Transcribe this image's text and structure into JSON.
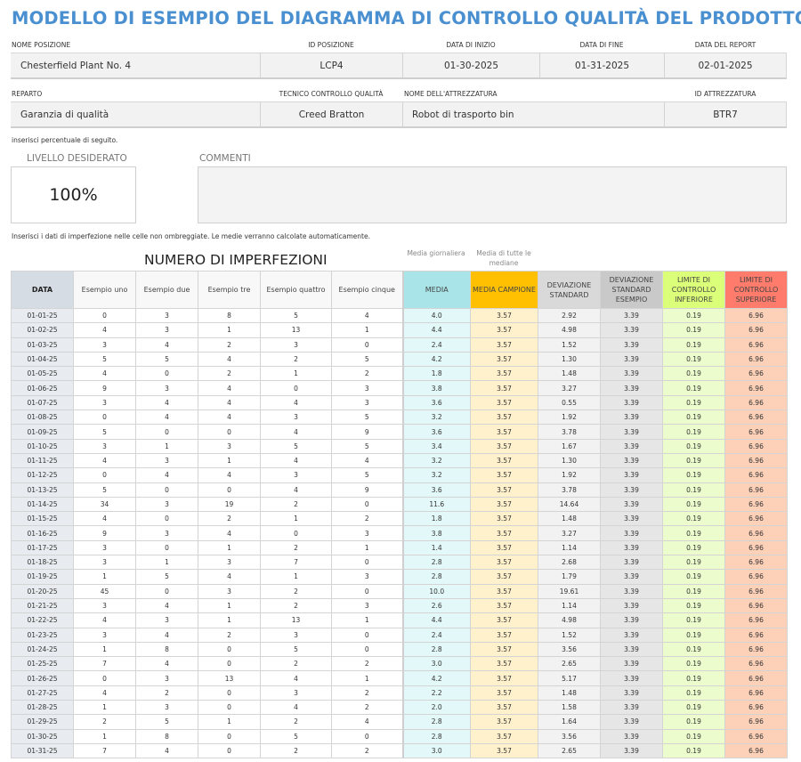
{
  "title": "MODELLO DI ESEMPIO DEL DIAGRAMMA DI CONTROLLO QUALITÀ DEL PRODOTTO",
  "info_row1": {
    "location_name_label": "NOME POSIZIONE",
    "location_name": "Chesterfield Plant No. 4",
    "location_id_label": "ID POSIZIONE",
    "location_id": "LCP4",
    "start_date_label": "DATA DI INIZIO",
    "start_date": "01-30-2025",
    "end_date_label": "DATA DI FINE",
    "end_date": "01-31-2025",
    "report_date_label": "DATA DEL REPORT",
    "report_date": "02-01-2025"
  },
  "info_row2": {
    "department_label": "REPARTO",
    "department": "Garanzia di qualità",
    "technician_label": "TECNICO CONTROLLO QUALITÀ",
    "technician": "Creed Bratton",
    "equipment_name_label": "NOME DELL'ATTREZZATURA",
    "equipment_name": "Robot di trasporto bin",
    "equipment_id_label": "ID ATTREZZATURA",
    "equipment_id": "BTR7"
  },
  "percent_note": "inserisci percentuale di seguito.",
  "target_label": "LIVELLO DESIDERATO",
  "target_value": "100%",
  "comments_label": "COMMENTI",
  "comments_value": "",
  "data_note": "Inserisci i dati di imperfezione nelle celle non ombreggiate. Le medie verranno calcolate automaticamente.",
  "table": {
    "title": "NUMERO DI IMPERFEZIONI",
    "note_daily_mean": "Media giornaliera",
    "note_mean_of_medians": "Media di tutte le mediane",
    "headers": {
      "date": "DATA",
      "s1": "Esempio uno",
      "s2": "Esempio due",
      "s3": "Esempio tre",
      "s4": "Esempio quattro",
      "s5": "Esempio cinque",
      "mean": "MEDIA",
      "sample_mean": "MEDIA CAMPIONE",
      "std_dev": "DEVIAZIONE STANDARD",
      "sample_std_dev": "DEVIAZIONE STANDARD ESEMPIO",
      "lcl": "LIMITE DI CONTROLLO INFERIORE",
      "ucl": "LIMITE DI CONTROLLO SUPERIORE"
    },
    "colors": {
      "date_header": "#d6dce4",
      "mean_header": "#a9e5e8",
      "sample_mean_header": "#fec000",
      "std_dev_header": "#d9d9d9",
      "sample_std_dev_header": "#c9c9c9",
      "lcl_header": "#dcff7a",
      "ucl_header": "#ff7b6b"
    },
    "rows": [
      [
        "01-01-25",
        "0",
        "3",
        "8",
        "5",
        "4",
        "4.0",
        "3.57",
        "2.92",
        "3.39",
        "0.19",
        "6.96"
      ],
      [
        "01-02-25",
        "4",
        "3",
        "1",
        "13",
        "1",
        "4.4",
        "3.57",
        "4.98",
        "3.39",
        "0.19",
        "6.96"
      ],
      [
        "01-03-25",
        "3",
        "4",
        "2",
        "3",
        "0",
        "2.4",
        "3.57",
        "1.52",
        "3.39",
        "0.19",
        "6.96"
      ],
      [
        "01-04-25",
        "5",
        "5",
        "4",
        "2",
        "5",
        "4.2",
        "3.57",
        "1.30",
        "3.39",
        "0.19",
        "6.96"
      ],
      [
        "01-05-25",
        "4",
        "0",
        "2",
        "1",
        "2",
        "1.8",
        "3.57",
        "1.48",
        "3.39",
        "0.19",
        "6.96"
      ],
      [
        "01-06-25",
        "9",
        "3",
        "4",
        "0",
        "3",
        "3.8",
        "3.57",
        "3.27",
        "3.39",
        "0.19",
        "6.96"
      ],
      [
        "01-07-25",
        "3",
        "4",
        "4",
        "4",
        "3",
        "3.6",
        "3.57",
        "0.55",
        "3.39",
        "0.19",
        "6.96"
      ],
      [
        "01-08-25",
        "0",
        "4",
        "4",
        "3",
        "5",
        "3.2",
        "3.57",
        "1.92",
        "3.39",
        "0.19",
        "6.96"
      ],
      [
        "01-09-25",
        "5",
        "0",
        "0",
        "4",
        "9",
        "3.6",
        "3.57",
        "3.78",
        "3.39",
        "0.19",
        "6.96"
      ],
      [
        "01-10-25",
        "3",
        "1",
        "3",
        "5",
        "5",
        "3.4",
        "3.57",
        "1.67",
        "3.39",
        "0.19",
        "6.96"
      ],
      [
        "01-11-25",
        "4",
        "3",
        "1",
        "4",
        "4",
        "3.2",
        "3.57",
        "1.30",
        "3.39",
        "0.19",
        "6.96"
      ],
      [
        "01-12-25",
        "0",
        "4",
        "4",
        "3",
        "5",
        "3.2",
        "3.57",
        "1.92",
        "3.39",
        "0.19",
        "6.96"
      ],
      [
        "01-13-25",
        "5",
        "0",
        "0",
        "4",
        "9",
        "3.6",
        "3.57",
        "3.78",
        "3.39",
        "0.19",
        "6.96"
      ],
      [
        "01-14-25",
        "34",
        "3",
        "19",
        "2",
        "0",
        "11.6",
        "3.57",
        "14.64",
        "3.39",
        "0.19",
        "6.96"
      ],
      [
        "01-15-25",
        "4",
        "0",
        "2",
        "1",
        "2",
        "1.8",
        "3.57",
        "1.48",
        "3.39",
        "0.19",
        "6.96"
      ],
      [
        "01-16-25",
        "9",
        "3",
        "4",
        "0",
        "3",
        "3.8",
        "3.57",
        "3.27",
        "3.39",
        "0.19",
        "6.96"
      ],
      [
        "01-17-25",
        "3",
        "0",
        "1",
        "2",
        "1",
        "1.4",
        "3.57",
        "1.14",
        "3.39",
        "0.19",
        "6.96"
      ],
      [
        "01-18-25",
        "3",
        "1",
        "3",
        "7",
        "0",
        "2.8",
        "3.57",
        "2.68",
        "3.39",
        "0.19",
        "6.96"
      ],
      [
        "01-19-25",
        "1",
        "5",
        "4",
        "1",
        "3",
        "2.8",
        "3.57",
        "1.79",
        "3.39",
        "0.19",
        "6.96"
      ],
      [
        "01-20-25",
        "45",
        "0",
        "3",
        "2",
        "0",
        "10.0",
        "3.57",
        "19.61",
        "3.39",
        "0.19",
        "6.96"
      ],
      [
        "01-21-25",
        "3",
        "4",
        "1",
        "2",
        "3",
        "2.6",
        "3.57",
        "1.14",
        "3.39",
        "0.19",
        "6.96"
      ],
      [
        "01-22-25",
        "4",
        "3",
        "1",
        "13",
        "1",
        "4.4",
        "3.57",
        "4.98",
        "3.39",
        "0.19",
        "6.96"
      ],
      [
        "01-23-25",
        "3",
        "4",
        "2",
        "3",
        "0",
        "2.4",
        "3.57",
        "1.52",
        "3.39",
        "0.19",
        "6.96"
      ],
      [
        "01-24-25",
        "1",
        "8",
        "0",
        "5",
        "0",
        "2.8",
        "3.57",
        "3.56",
        "3.39",
        "0.19",
        "6.96"
      ],
      [
        "01-25-25",
        "7",
        "4",
        "0",
        "2",
        "2",
        "3.0",
        "3.57",
        "2.65",
        "3.39",
        "0.19",
        "6.96"
      ],
      [
        "01-26-25",
        "0",
        "3",
        "13",
        "4",
        "1",
        "4.2",
        "3.57",
        "5.17",
        "3.39",
        "0.19",
        "6.96"
      ],
      [
        "01-27-25",
        "4",
        "2",
        "0",
        "3",
        "2",
        "2.2",
        "3.57",
        "1.48",
        "3.39",
        "0.19",
        "6.96"
      ],
      [
        "01-28-25",
        "1",
        "3",
        "0",
        "4",
        "2",
        "2.0",
        "3.57",
        "1.58",
        "3.39",
        "0.19",
        "6.96"
      ],
      [
        "01-29-25",
        "2",
        "5",
        "1",
        "2",
        "4",
        "2.8",
        "3.57",
        "1.64",
        "3.39",
        "0.19",
        "6.96"
      ],
      [
        "01-30-25",
        "1",
        "8",
        "0",
        "5",
        "0",
        "2.8",
        "3.57",
        "3.56",
        "3.39",
        "0.19",
        "6.96"
      ],
      [
        "01-31-25",
        "7",
        "4",
        "0",
        "2",
        "2",
        "3.0",
        "3.57",
        "2.65",
        "3.39",
        "0.19",
        "6.96"
      ]
    ]
  }
}
